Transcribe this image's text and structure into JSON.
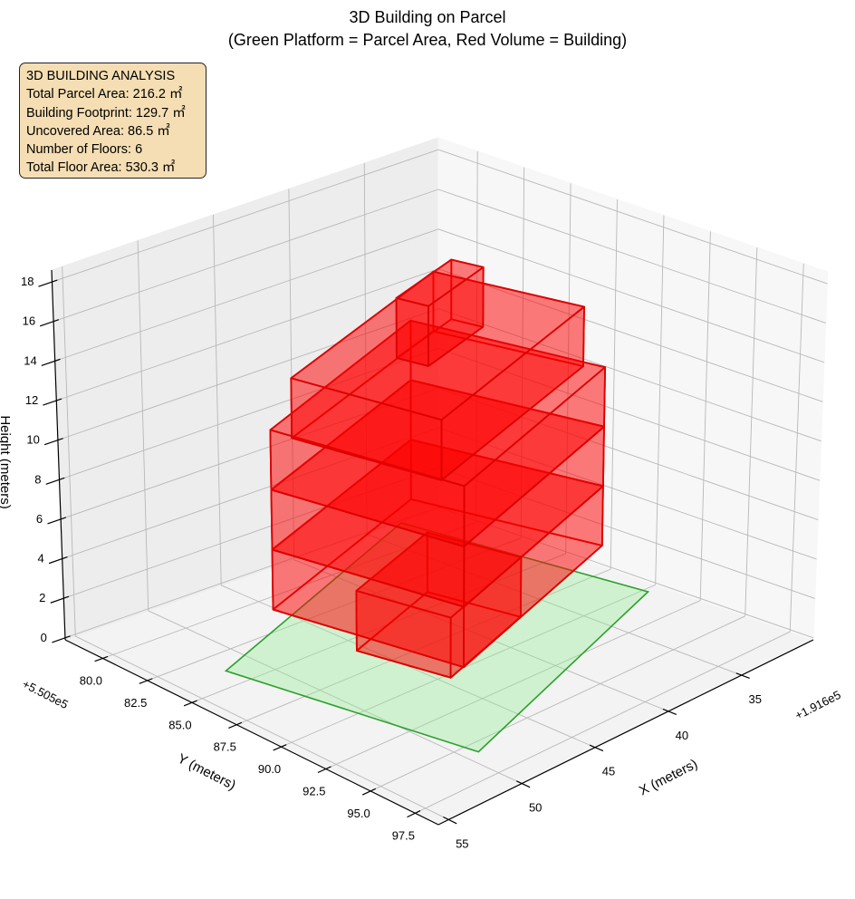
{
  "chart_data": {
    "type": "3d-polygons",
    "title_line1": "3D Building on Parcel",
    "title_line2": "(Green Platform = Parcel Area, Red Volume = Building)",
    "xlabel": "X (meters)",
    "ylabel": "Y (meters)",
    "zlabel": "Height (meters)",
    "x_offset_text": "+1.916e5",
    "y_offset_text": "+5.505e5",
    "xlim": [
      30.1,
      55.7
    ],
    "ylim": [
      77.9,
      98.8
    ],
    "zlim": [
      -0.1,
      18.6
    ],
    "x_ticks": [
      35,
      40,
      45,
      50,
      55
    ],
    "x_tick_labels": [
      "35",
      "40",
      "45",
      "50",
      "55"
    ],
    "y_ticks": [
      80,
      82.5,
      85,
      87.5,
      90,
      92.5,
      95,
      97.5
    ],
    "y_tick_labels": [
      "80.0",
      "82.5",
      "85.0",
      "87.5",
      "90.0",
      "92.5",
      "95.0",
      "97.5"
    ],
    "z_ticks": [
      0,
      2,
      4,
      6,
      8,
      10,
      12,
      14,
      16,
      18
    ],
    "z_tick_labels": [
      "0",
      "2",
      "4",
      "6",
      "8",
      "10",
      "12",
      "14",
      "16",
      "18"
    ],
    "grid": true,
    "colors": {
      "parcel_fill": "#90ee90",
      "parcel_edge": "#2ca02c",
      "building_fill": "#ff0000",
      "building_edge": "#dd0000",
      "info_box": "#f5deb3"
    },
    "parcel": {
      "z": 0,
      "footprint": [
        [
          52.1,
          83.96
        ],
        [
          49.3,
          95.8
        ],
        [
          31.1,
          90.4
        ],
        [
          32.9,
          78.1
        ]
      ]
    },
    "building_floors": [
      {
        "floor": 1,
        "z": [
          0,
          3
        ],
        "footprint": [
          [
            45.7,
            86.05
          ],
          [
            44.6,
            90.4
          ],
          [
            37.3,
            88.35
          ],
          [
            38.3,
            83.96
          ]
        ]
      },
      {
        "floor": 2,
        "z": [
          3,
          6
        ],
        "footprint": [
          [
            50.2,
            85.1
          ],
          [
            48.0,
            93.9
          ],
          [
            33.7,
            89.9
          ],
          [
            35.9,
            81.1
          ]
        ]
      },
      {
        "floor": 3,
        "z": [
          6,
          9
        ],
        "footprint": [
          [
            50.2,
            85.1
          ],
          [
            48.0,
            93.9
          ],
          [
            33.7,
            89.9
          ],
          [
            35.9,
            81.1
          ]
        ]
      },
      {
        "floor": 4,
        "z": [
          9,
          12
        ],
        "footprint": [
          [
            50.2,
            85.1
          ],
          [
            48.0,
            93.9
          ],
          [
            33.7,
            89.9
          ],
          [
            35.9,
            81.1
          ]
        ]
      },
      {
        "floor": 5,
        "z": [
          12,
          15
        ],
        "footprint": [
          [
            50.1,
            86.2
          ],
          [
            48.3,
            92.9
          ],
          [
            34.3,
            89.2
          ],
          [
            36.1,
            82.5
          ]
        ]
      },
      {
        "floor": 6,
        "z": [
          15,
          18
        ],
        "footprint": [
          [
            44.8,
            87.6
          ],
          [
            44.4,
            89.0
          ],
          [
            39.3,
            87.8
          ],
          [
            39.7,
            86.4
          ]
        ]
      }
    ]
  },
  "info_box": {
    "heading": "3D BUILDING ANALYSIS",
    "parcel_area": "Total Parcel Area: 216.2 ㎡",
    "footprint": "Building Footprint: 129.7 ㎡",
    "uncovered": "Uncovered Area: 86.5 ㎡",
    "floors": "Number of Floors: 6",
    "floor_area": "Total Floor Area: 530.3 ㎡"
  }
}
